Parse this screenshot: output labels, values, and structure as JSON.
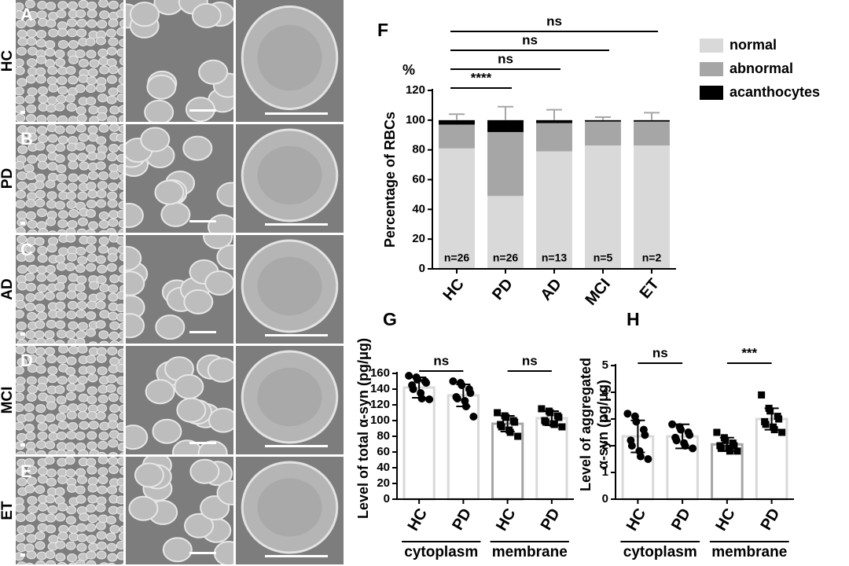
{
  "image_panels": [
    {
      "letter": "A",
      "label": "HC"
    },
    {
      "letter": "B",
      "label": "PD"
    },
    {
      "letter": "C",
      "label": "AD"
    },
    {
      "letter": "D",
      "label": "MCI"
    },
    {
      "letter": "E",
      "label": "ET"
    }
  ],
  "chart_data": [
    {
      "type": "stacked_bar",
      "panel": "F",
      "ylabel": "Percentage of RBCs",
      "unit": "%",
      "categories": [
        "HC",
        "PD",
        "AD",
        "MCI",
        "ET"
      ],
      "series": [
        {
          "name": "normal",
          "color": "#d9d9d9",
          "values": [
            81,
            49,
            79,
            83,
            83
          ],
          "errors": [
            10,
            20,
            10,
            4,
            8
          ],
          "error_color": "#ffffff"
        },
        {
          "name": "abnormal",
          "color": "#a6a6a6",
          "values": [
            16,
            43,
            19,
            16,
            16
          ]
        },
        {
          "name": "acanthocytes",
          "color": "#000000",
          "values": [
            3,
            8,
            2,
            1,
            1
          ],
          "errors": [
            4,
            9,
            7,
            2,
            5
          ],
          "error_color": "#a6a6a6"
        }
      ],
      "n_labels": [
        "n=26",
        "n=26",
        "n=13",
        "n=5",
        "n=2"
      ],
      "ylim": [
        0,
        120
      ],
      "yticks": [
        0,
        20,
        40,
        60,
        80,
        100,
        120
      ],
      "comparisons": [
        {
          "label": "****",
          "between": [
            "HC",
            "PD"
          ]
        },
        {
          "label": "ns",
          "between": [
            "HC",
            "AD"
          ]
        },
        {
          "label": "ns",
          "between": [
            "HC",
            "MCI"
          ]
        },
        {
          "label": "ns",
          "between": [
            "HC",
            "ET"
          ]
        }
      ],
      "legend": "right"
    },
    {
      "type": "dot_bar",
      "panel": "G",
      "ylabel": [
        "Level of total α-syn (pg/μg)"
      ],
      "ylim": [
        0,
        160
      ],
      "yticks": [
        0,
        20,
        40,
        60,
        80,
        100,
        120,
        140,
        160
      ],
      "groups": [
        {
          "name": "cytoplasm",
          "significance": "ns",
          "bars": [
            {
              "name": "HC",
              "color": "#d9d9d9",
              "marker": "circle",
              "value": 142,
              "error": 13,
              "points": [
                157,
                155,
                152,
                150,
                148,
                145,
                140,
                135,
                128,
                127
              ]
            },
            {
              "name": "PD",
              "color": "#d9d9d9",
              "marker": "circle",
              "value": 132,
              "error": 14,
              "points": [
                150,
                148,
                145,
                140,
                135,
                130,
                128,
                125,
                118,
                105
              ]
            }
          ]
        },
        {
          "name": "membrane",
          "significance": "ns",
          "bars": [
            {
              "name": "HC",
              "color": "#a6a6a6",
              "marker": "square",
              "value": 96,
              "error": 10,
              "points": [
                110,
                106,
                104,
                100,
                98,
                95,
                92,
                88,
                85,
                80
              ]
            },
            {
              "name": "PD",
              "color": "#d9d9d9",
              "marker": "square",
              "value": 103,
              "error": 9,
              "points": [
                115,
                112,
                110,
                106,
                104,
                100,
                98,
                96,
                95,
                92
              ]
            }
          ]
        }
      ]
    },
    {
      "type": "dot_bar",
      "panel": "H",
      "ylabel": [
        "Level of aggregated",
        "α-syn (pg/μg)"
      ],
      "ylim": [
        0,
        5
      ],
      "yticks": [
        0,
        1,
        2,
        3,
        4,
        5
      ],
      "groups": [
        {
          "name": "cytoplasm",
          "significance": "ns",
          "bars": [
            {
              "name": "HC",
              "color": "#d9d9d9",
              "marker": "circle",
              "value": 2.35,
              "error": 0.6,
              "points": [
                3.2,
                3.1,
                2.9,
                2.6,
                2.4,
                2.2,
                2.0,
                1.8,
                1.6,
                1.5
              ]
            },
            {
              "name": "PD",
              "color": "#d9d9d9",
              "marker": "circle",
              "value": 2.35,
              "error": 0.45,
              "points": [
                2.8,
                2.7,
                2.6,
                2.5,
                2.4,
                2.3,
                2.2,
                2.1,
                2.0,
                1.9
              ]
            }
          ]
        },
        {
          "name": "membrane",
          "significance": "***",
          "bars": [
            {
              "name": "HC",
              "color": "#a6a6a6",
              "marker": "square",
              "value": 2.05,
              "error": 0.25,
              "points": [
                2.5,
                2.3,
                2.2,
                2.1,
                2.0,
                2.0,
                1.9,
                1.9,
                1.8,
                1.8
              ]
            },
            {
              "name": "PD",
              "color": "#d9d9d9",
              "marker": "square",
              "value": 3.0,
              "error": 0.4,
              "points": [
                3.9,
                3.4,
                3.3,
                3.1,
                3.0,
                2.9,
                2.8,
                2.7,
                2.6,
                2.5
              ]
            }
          ]
        }
      ]
    }
  ]
}
